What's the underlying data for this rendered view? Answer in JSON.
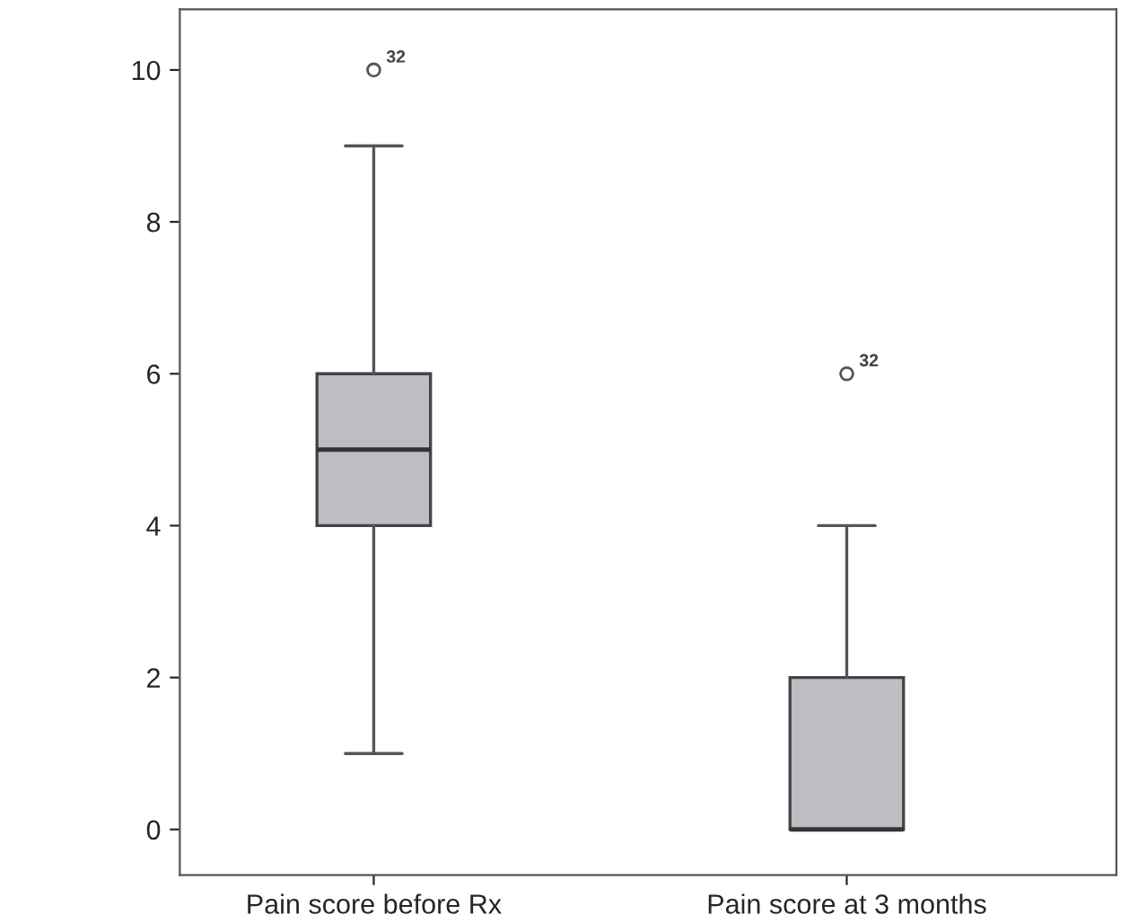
{
  "chart_data": {
    "type": "box",
    "categories": [
      "Pain score before Rx",
      "Pain score at 3 months"
    ],
    "boxes": [
      {
        "low": 1,
        "q1": 4,
        "median": 5,
        "q3": 6,
        "high": 9,
        "outliers": [
          10
        ]
      },
      {
        "low": 0,
        "q1": 0,
        "median": 0,
        "q3": 2,
        "high": 4,
        "outliers": [
          6
        ]
      }
    ],
    "color": "#bdbdc4",
    "ylim": [
      -0.6,
      10.8
    ],
    "yticks": [
      0,
      2,
      4,
      6,
      8,
      10
    ],
    "grid": false,
    "annotations": [
      "32",
      "32"
    ]
  }
}
